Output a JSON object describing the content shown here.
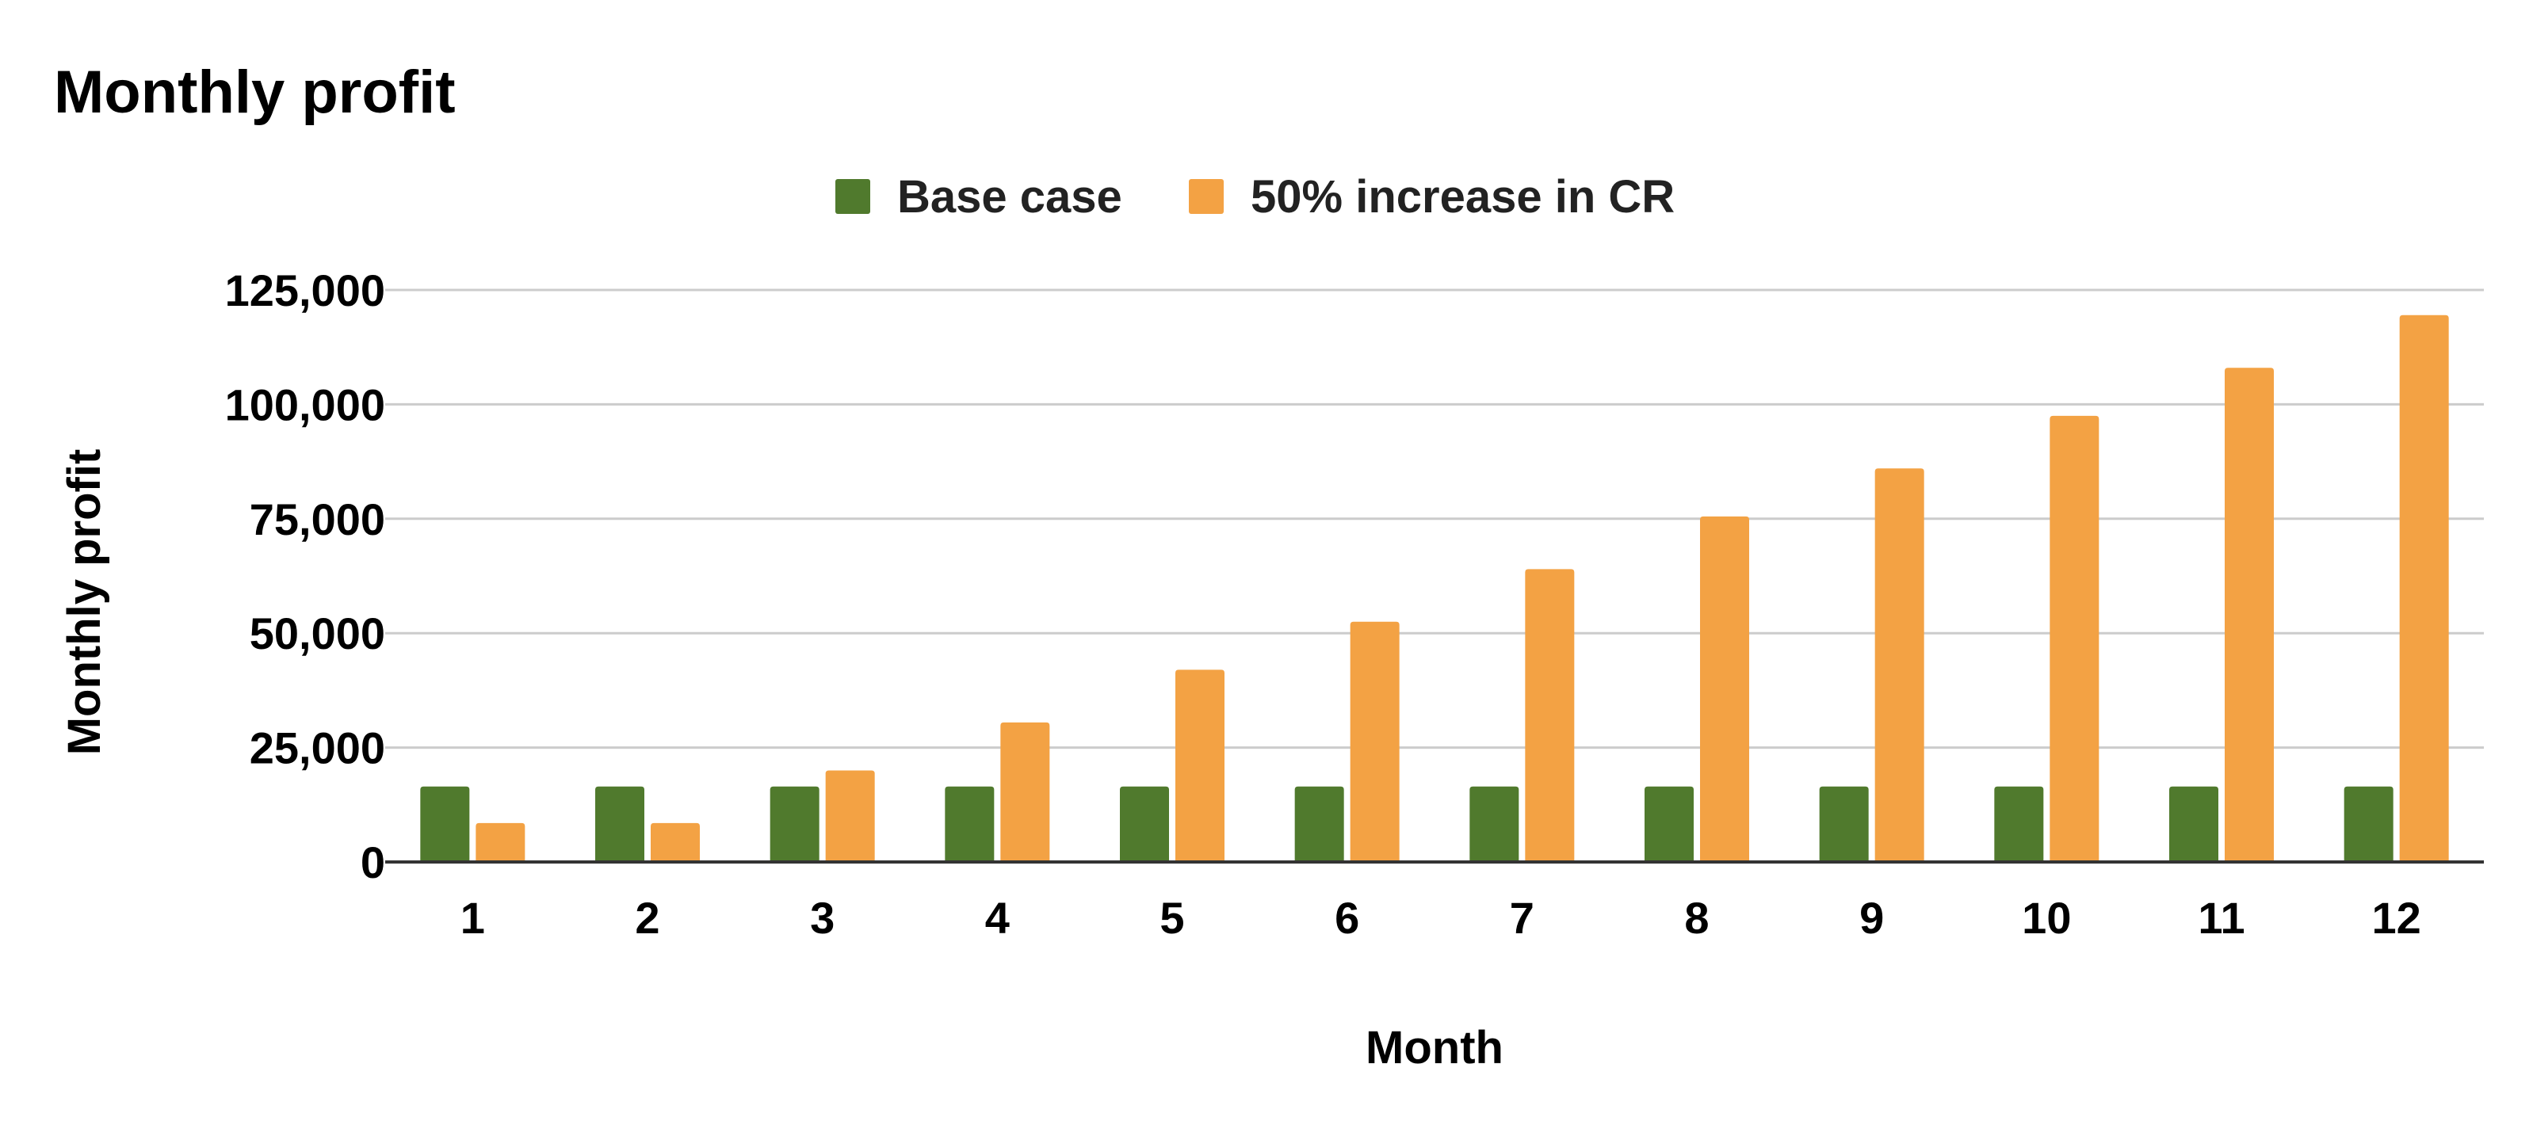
{
  "chart_data": {
    "type": "bar",
    "title": "Monthly profit",
    "xlabel": "Month",
    "ylabel": "Monthly profit",
    "categories": [
      "1",
      "2",
      "3",
      "4",
      "5",
      "6",
      "7",
      "8",
      "9",
      "10",
      "11",
      "12"
    ],
    "series": [
      {
        "name": "Base case",
        "color": "#507A2D",
        "values": [
          16500,
          16500,
          16500,
          16500,
          16500,
          16500,
          16500,
          16500,
          16500,
          16500,
          16500,
          16500
        ]
      },
      {
        "name": "50% increase in CR",
        "color": "#F3A244",
        "values": [
          8500,
          8500,
          20000,
          30500,
          42000,
          52500,
          64000,
          75500,
          86000,
          97500,
          108000,
          119500
        ]
      }
    ],
    "ylim": [
      0,
      125000
    ],
    "yticks": [
      0,
      25000,
      50000,
      75000,
      100000,
      125000
    ],
    "ytick_labels": [
      "0",
      "25,000",
      "50,000",
      "75,000",
      "100,000",
      "125,000"
    ],
    "grid": true,
    "legend": "top-center",
    "gridline_color": "#CCCCCC",
    "axis_color": "#333333"
  }
}
